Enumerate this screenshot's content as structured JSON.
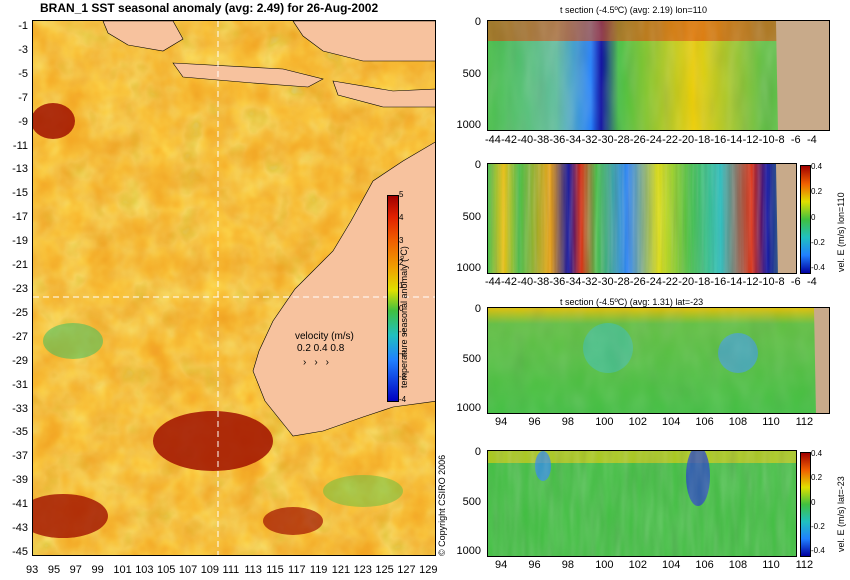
{
  "map": {
    "title": "BRAN_1  SST seasonal anomaly (avg: 2.49) for 26-Aug-2002",
    "lat_ticks": [
      "-1",
      "-3",
      "-5",
      "-7",
      "-9",
      "-11",
      "-13",
      "-15",
      "-17",
      "-19",
      "-21",
      "-23",
      "-25",
      "-27",
      "-29",
      "-31",
      "-33",
      "-35",
      "-37",
      "-39",
      "-41",
      "-43",
      "-45"
    ],
    "lon_ticks": [
      "93",
      "95",
      "97",
      "99",
      "101",
      "103",
      "105",
      "107",
      "109",
      "111",
      "113",
      "115",
      "117",
      "119",
      "121",
      "123",
      "125",
      "127",
      "129"
    ],
    "colorbar": {
      "label": "temperature seasonal anomaly (ºC)",
      "ticks": [
        "5",
        "4",
        "3",
        "2",
        "1",
        "0",
        "-1",
        "-2",
        "-3",
        "-4"
      ]
    },
    "velocity_legend": {
      "title": "velocity (m/s)",
      "scale": "0.2 0.4 0.8"
    },
    "copyright": "© Copyright CSIRO 2006"
  },
  "panels": [
    {
      "title": "t section (-4.5ºC) (avg: 2.19) lon=110",
      "y_ticks": [
        "0",
        "500",
        "1000"
      ],
      "x_ticks": [
        "-44",
        "-42",
        "-40",
        "-38",
        "-36",
        "-34",
        "-32",
        "-30",
        "-28",
        "-26",
        "-24",
        "-22",
        "-20",
        "-18",
        "-16",
        "-14",
        "-12",
        "-10",
        "-8",
        "-6",
        "-4"
      ]
    },
    {
      "title": "",
      "side_label": "vel. E (m/s) lon=110",
      "cb_ticks": [
        "0.4",
        "0.2",
        "0",
        "-0.2",
        "-0.4"
      ],
      "y_ticks": [
        "0",
        "500",
        "1000"
      ],
      "x_ticks": [
        "-44",
        "-42",
        "-40",
        "-38",
        "-36",
        "-34",
        "-32",
        "-30",
        "-28",
        "-26",
        "-24",
        "-22",
        "-20",
        "-18",
        "-16",
        "-14",
        "-12",
        "-10",
        "-8",
        "-6",
        "-4"
      ]
    },
    {
      "title": "t section (-4.5ºC) (avg: 1.31) lat=-23",
      "y_ticks": [
        "0",
        "500",
        "1000"
      ],
      "x_ticks": [
        "94",
        "96",
        "98",
        "100",
        "102",
        "104",
        "106",
        "108",
        "110",
        "112"
      ]
    },
    {
      "title": "",
      "side_label": "vel. E (m/s) lat=-23",
      "cb_ticks": [
        "0.4",
        "0.2",
        "0",
        "-0.2",
        "-0.4"
      ],
      "y_ticks": [
        "0",
        "500",
        "1000"
      ],
      "x_ticks": [
        "94",
        "96",
        "98",
        "100",
        "102",
        "104",
        "106",
        "108",
        "110",
        "112"
      ]
    }
  ],
  "chart_data": [
    {
      "type": "heatmap",
      "title": "BRAN_1  SST seasonal anomaly (avg: 2.49) for 26-Aug-2002",
      "xlabel": "",
      "ylabel": "",
      "xlim": [
        93,
        130
      ],
      "ylim": [
        -45,
        0
      ],
      "colorbar_range": [
        -4,
        5
      ],
      "colorbar_label": "temperature seasonal anomaly (ºC)",
      "grid": false,
      "crosshair": {
        "lon": 110,
        "lat": -23
      }
    },
    {
      "type": "heatmap",
      "title": "t section (-4.5ºC) (avg: 2.19) lon=110",
      "xlim": [
        -45,
        -3
      ],
      "ylim": [
        1050,
        0
      ]
    },
    {
      "type": "heatmap",
      "title": "",
      "colorbar_label": "vel. E (m/s) lon=110",
      "colorbar_range": [
        -0.4,
        0.4
      ],
      "xlim": [
        -45,
        -3
      ],
      "ylim": [
        1050,
        0
      ]
    },
    {
      "type": "heatmap",
      "title": "t section (-4.5ºC) (avg: 1.31) lat=-23",
      "xlim": [
        93,
        114
      ],
      "ylim": [
        1050,
        0
      ]
    },
    {
      "type": "heatmap",
      "title": "",
      "colorbar_label": "vel. E (m/s) lat=-23",
      "colorbar_range": [
        -0.4,
        0.4
      ],
      "xlim": [
        93,
        114
      ],
      "ylim": [
        1050,
        0
      ]
    }
  ]
}
